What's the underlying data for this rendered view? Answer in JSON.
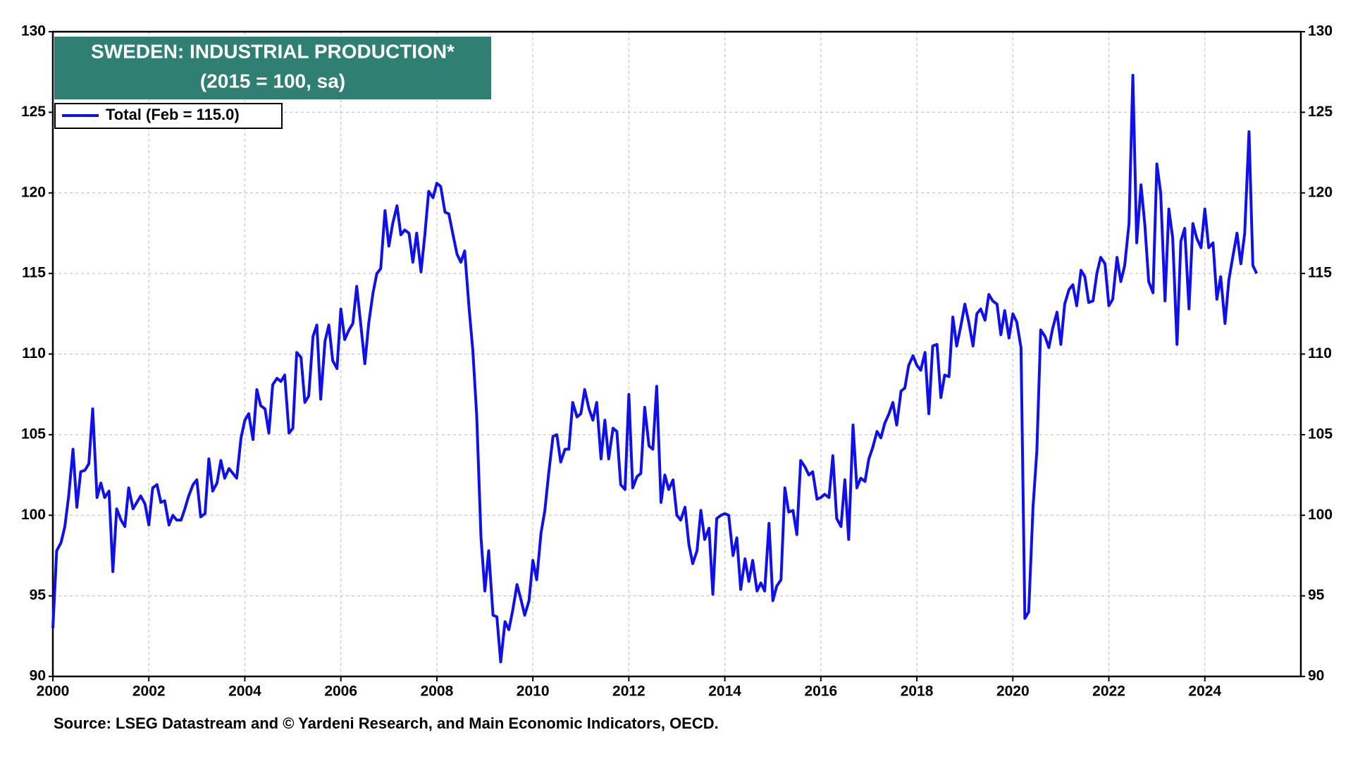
{
  "chart_data": {
    "type": "line",
    "title": "SWEDEN: INDUSTRIAL PRODUCTION*",
    "subtitle": "(2015 = 100,  sa)",
    "source": "Source: LSEG Datastream and © Yardeni Research, and Main Economic Indicators, OECD.",
    "legend": "upper left",
    "grid": true,
    "xlim": [
      2000,
      2026
    ],
    "xticks": [
      2000,
      2002,
      2004,
      2006,
      2008,
      2010,
      2012,
      2014,
      2016,
      2018,
      2020,
      2022,
      2024
    ],
    "ylim": [
      90,
      130
    ],
    "yticks": [
      90,
      95,
      100,
      105,
      110,
      115,
      120,
      125,
      130
    ],
    "y2lim": [
      90,
      130
    ],
    "y2ticks": [
      90,
      95,
      100,
      105,
      110,
      115,
      120,
      125,
      130
    ],
    "x": [
      2000.0,
      2000.08,
      2000.17,
      2000.25,
      2000.33,
      2000.42,
      2000.5,
      2000.58,
      2000.67,
      2000.75,
      2000.83,
      2000.92,
      2001.0,
      2001.08,
      2001.17,
      2001.25,
      2001.33,
      2001.42,
      2001.5,
      2001.58,
      2001.67,
      2001.75,
      2001.83,
      2001.92,
      2002.0,
      2002.08,
      2002.17,
      2002.25,
      2002.33,
      2002.42,
      2002.5,
      2002.58,
      2002.67,
      2002.75,
      2002.83,
      2002.92,
      2003.0,
      2003.08,
      2003.17,
      2003.25,
      2003.33,
      2003.42,
      2003.5,
      2003.58,
      2003.67,
      2003.75,
      2003.83,
      2003.92,
      2004.0,
      2004.08,
      2004.17,
      2004.25,
      2004.33,
      2004.42,
      2004.5,
      2004.58,
      2004.67,
      2004.75,
      2004.83,
      2004.92,
      2005.0,
      2005.08,
      2005.17,
      2005.25,
      2005.33,
      2005.42,
      2005.5,
      2005.58,
      2005.67,
      2005.75,
      2005.83,
      2005.92,
      2006.0,
      2006.08,
      2006.17,
      2006.25,
      2006.33,
      2006.42,
      2006.5,
      2006.58,
      2006.67,
      2006.75,
      2006.83,
      2006.92,
      2007.0,
      2007.08,
      2007.17,
      2007.25,
      2007.33,
      2007.42,
      2007.5,
      2007.58,
      2007.67,
      2007.75,
      2007.83,
      2007.92,
      2008.0,
      2008.08,
      2008.17,
      2008.25,
      2008.33,
      2008.42,
      2008.5,
      2008.58,
      2008.67,
      2008.75,
      2008.83,
      2008.92,
      2009.0,
      2009.08,
      2009.17,
      2009.25,
      2009.33,
      2009.42,
      2009.5,
      2009.58,
      2009.67,
      2009.75,
      2009.83,
      2009.92,
      2010.0,
      2010.08,
      2010.17,
      2010.25,
      2010.33,
      2010.42,
      2010.5,
      2010.58,
      2010.67,
      2010.75,
      2010.83,
      2010.92,
      2011.0,
      2011.08,
      2011.17,
      2011.25,
      2011.33,
      2011.42,
      2011.5,
      2011.58,
      2011.67,
      2011.75,
      2011.83,
      2011.92,
      2012.0,
      2012.08,
      2012.17,
      2012.25,
      2012.33,
      2012.42,
      2012.5,
      2012.58,
      2012.67,
      2012.75,
      2012.83,
      2012.92,
      2013.0,
      2013.08,
      2013.17,
      2013.25,
      2013.33,
      2013.42,
      2013.5,
      2013.58,
      2013.67,
      2013.75,
      2013.83,
      2013.92,
      2014.0,
      2014.08,
      2014.17,
      2014.25,
      2014.33,
      2014.42,
      2014.5,
      2014.58,
      2014.67,
      2014.75,
      2014.83,
      2014.92,
      2015.0,
      2015.08,
      2015.17,
      2015.25,
      2015.33,
      2015.42,
      2015.5,
      2015.58,
      2015.67,
      2015.75,
      2015.83,
      2015.92,
      2016.0,
      2016.08,
      2016.17,
      2016.25,
      2016.33,
      2016.42,
      2016.5,
      2016.58,
      2016.67,
      2016.75,
      2016.83,
      2016.92,
      2017.0,
      2017.08,
      2017.17,
      2017.25,
      2017.33,
      2017.42,
      2017.5,
      2017.58,
      2017.67,
      2017.75,
      2017.83,
      2017.92,
      2018.0,
      2018.08,
      2018.17,
      2018.25,
      2018.33,
      2018.42,
      2018.5,
      2018.58,
      2018.67,
      2018.75,
      2018.83,
      2018.92,
      2019.0,
      2019.08,
      2019.17,
      2019.25,
      2019.33,
      2019.42,
      2019.5,
      2019.58,
      2019.67,
      2019.75,
      2019.83,
      2019.92,
      2020.0,
      2020.08,
      2020.17,
      2020.25,
      2020.33,
      2020.42,
      2020.5,
      2020.58,
      2020.67,
      2020.75,
      2020.83,
      2020.92,
      2021.0,
      2021.08,
      2021.17,
      2021.25,
      2021.33,
      2021.42,
      2021.5,
      2021.58,
      2021.67,
      2021.75,
      2021.83,
      2021.92,
      2022.0,
      2022.08,
      2022.17,
      2022.25,
      2022.33,
      2022.42,
      2022.5,
      2022.58,
      2022.67,
      2022.75,
      2022.83,
      2022.92,
      2023.0,
      2023.08,
      2023.17,
      2023.25,
      2023.33,
      2023.42,
      2023.5,
      2023.58,
      2023.67,
      2023.75,
      2023.83,
      2023.92,
      2024.0,
      2024.08,
      2024.17,
      2024.25,
      2024.33,
      2024.42,
      2024.5,
      2024.58,
      2024.67,
      2024.75,
      2024.83,
      2024.92,
      2025.0,
      2025.08
    ],
    "series": [
      {
        "name": "Total (Feb = 115.0)",
        "color": "#1010ee",
        "values": [
          93,
          97.8,
          98.3,
          99.3,
          101.2,
          104.1,
          100.5,
          102.7,
          102.8,
          103.2,
          106.6,
          101.1,
          102,
          101.1,
          101.5,
          96.5,
          100.4,
          99.7,
          99.3,
          101.7,
          100.4,
          100.8,
          101.2,
          100.7,
          99.4,
          101.7,
          101.9,
          100.8,
          100.9,
          99.4,
          100,
          99.7,
          99.7,
          100.4,
          101.2,
          101.9,
          102.2,
          99.9,
          100.1,
          103.5,
          101.5,
          102,
          103.4,
          102.3,
          102.9,
          102.6,
          102.3,
          104.8,
          105.9,
          106.3,
          104.7,
          107.8,
          106.8,
          106.6,
          105.1,
          108.1,
          108.5,
          108.3,
          108.7,
          105.1,
          105.4,
          110.1,
          109.8,
          107,
          107.4,
          111.1,
          111.8,
          107.2,
          110.8,
          111.8,
          109.6,
          109.1,
          112.8,
          110.9,
          111.5,
          111.9,
          114.2,
          111.7,
          109.4,
          111.9,
          113.8,
          115,
          115.3,
          118.9,
          116.7,
          118.1,
          119.2,
          117.4,
          117.7,
          117.5,
          115.7,
          117.5,
          115.1,
          117.4,
          120.1,
          119.7,
          120.6,
          120.4,
          118.8,
          118.7,
          117.5,
          116.2,
          115.7,
          116.4,
          112.9,
          110.2,
          106.2,
          98.6,
          95.3,
          97.8,
          93.8,
          93.7,
          90.9,
          93.4,
          92.9,
          94.1,
          95.7,
          94.8,
          93.8,
          94.7,
          97.2,
          96,
          98.9,
          100.3,
          102.6,
          104.9,
          105,
          103.3,
          104.1,
          104.1,
          107,
          106.1,
          106.3,
          107.8,
          106.6,
          105.9,
          107,
          103.5,
          105.9,
          103.5,
          105.4,
          105.2,
          101.9,
          101.6,
          107.5,
          101.7,
          102.4,
          102.6,
          106.7,
          104.3,
          104.1,
          108,
          100.8,
          102.5,
          101.6,
          102.2,
          100,
          99.7,
          100.5,
          98.2,
          97,
          97.8,
          100.3,
          98.5,
          99.2,
          95.1,
          99.8,
          100,
          100.1,
          100,
          97.5,
          98.6,
          95.4,
          97.3,
          95.9,
          97.2,
          95.3,
          95.8,
          95.3,
          99.5,
          94.7,
          95.6,
          96,
          101.7,
          100.2,
          100.3,
          98.8,
          103.4,
          103,
          102.5,
          102.7,
          101,
          101.1,
          101.3,
          101.1,
          103.7,
          99.8,
          99.3,
          102.2,
          98.5,
          105.6,
          101.7,
          102.3,
          102.1,
          103.5,
          104.2,
          105.2,
          104.8,
          105.7,
          106.3,
          107,
          105.6,
          107.7,
          107.9,
          109.3,
          109.9,
          109.3,
          109,
          110.1,
          106.3,
          110.5,
          110.6,
          107.3,
          108.7,
          108.6,
          112.3,
          110.5,
          111.8,
          113.1,
          112,
          110.5,
          112.5,
          112.8,
          112.1,
          113.7,
          113.3,
          113.1,
          111.2,
          112.7,
          111,
          112.5,
          112,
          110.4,
          93.6,
          94,
          100.5,
          104,
          111.5,
          111.1,
          110.4,
          111.6,
          112.6,
          110.6,
          113.1,
          114,
          114.3,
          113,
          115.2,
          114.8,
          113.2,
          113.3,
          115,
          116,
          115.6,
          113,
          113.4,
          116,
          114.5,
          115.5,
          118.1,
          127.3,
          116.9,
          120.5,
          118,
          114.5,
          113.8,
          121.8,
          120,
          113.3,
          119,
          117.2,
          110.6,
          117,
          117.8,
          112.8,
          118.1,
          117.2,
          116.6,
          119,
          116.6,
          116.9,
          113.4,
          114.8,
          111.9,
          114.6,
          116,
          117.5,
          115.6,
          117.5,
          123.8,
          115.5,
          115.0
        ]
      }
    ]
  }
}
